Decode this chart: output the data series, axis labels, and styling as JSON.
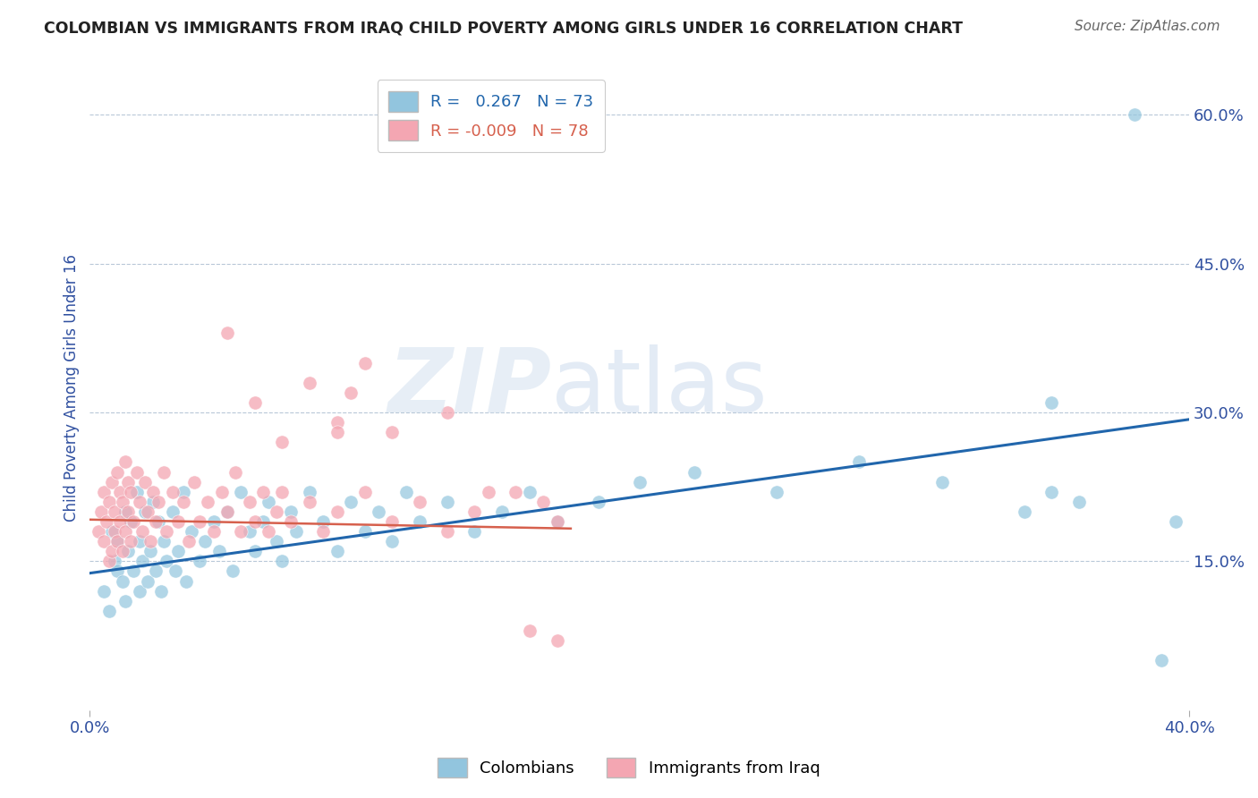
{
  "title": "COLOMBIAN VS IMMIGRANTS FROM IRAQ CHILD POVERTY AMONG GIRLS UNDER 16 CORRELATION CHART",
  "source": "Source: ZipAtlas.com",
  "ylabel_label": "Child Poverty Among Girls Under 16",
  "y_ticks": [
    0.15,
    0.3,
    0.45,
    0.6
  ],
  "y_tick_labels": [
    "15.0%",
    "30.0%",
    "45.0%",
    "60.0%"
  ],
  "xlim": [
    0.0,
    0.4
  ],
  "ylim": [
    0.0,
    0.65
  ],
  "colombians_R": 0.267,
  "colombians_N": 73,
  "iraq_R": -0.009,
  "iraq_N": 78,
  "blue_color": "#92c5de",
  "pink_color": "#f4a6b2",
  "blue_line_color": "#2166ac",
  "pink_line_color": "#d6604d",
  "legend_label_1": "Colombians",
  "legend_label_2": "Immigrants from Iraq",
  "blue_trend_x": [
    0.0,
    0.4
  ],
  "blue_trend_y": [
    0.138,
    0.293
  ],
  "pink_trend_x": [
    0.0,
    0.175
  ],
  "pink_trend_y": [
    0.192,
    0.183
  ],
  "blue_x": [
    0.005,
    0.007,
    0.008,
    0.009,
    0.01,
    0.01,
    0.012,
    0.013,
    0.013,
    0.014,
    0.015,
    0.016,
    0.017,
    0.018,
    0.018,
    0.019,
    0.02,
    0.021,
    0.022,
    0.023,
    0.024,
    0.025,
    0.026,
    0.027,
    0.028,
    0.03,
    0.031,
    0.032,
    0.034,
    0.035,
    0.037,
    0.04,
    0.042,
    0.045,
    0.047,
    0.05,
    0.052,
    0.055,
    0.058,
    0.06,
    0.063,
    0.065,
    0.068,
    0.07,
    0.073,
    0.075,
    0.08,
    0.085,
    0.09,
    0.095,
    0.1,
    0.105,
    0.11,
    0.115,
    0.12,
    0.13,
    0.14,
    0.15,
    0.16,
    0.17,
    0.185,
    0.2,
    0.22,
    0.25,
    0.28,
    0.31,
    0.34,
    0.35,
    0.36,
    0.38,
    0.39,
    0.395,
    0.35
  ],
  "blue_y": [
    0.12,
    0.1,
    0.18,
    0.15,
    0.14,
    0.17,
    0.13,
    0.2,
    0.11,
    0.16,
    0.19,
    0.14,
    0.22,
    0.12,
    0.17,
    0.15,
    0.2,
    0.13,
    0.16,
    0.21,
    0.14,
    0.19,
    0.12,
    0.17,
    0.15,
    0.2,
    0.14,
    0.16,
    0.22,
    0.13,
    0.18,
    0.15,
    0.17,
    0.19,
    0.16,
    0.2,
    0.14,
    0.22,
    0.18,
    0.16,
    0.19,
    0.21,
    0.17,
    0.15,
    0.2,
    0.18,
    0.22,
    0.19,
    0.16,
    0.21,
    0.18,
    0.2,
    0.17,
    0.22,
    0.19,
    0.21,
    0.18,
    0.2,
    0.22,
    0.19,
    0.21,
    0.23,
    0.24,
    0.22,
    0.25,
    0.23,
    0.2,
    0.22,
    0.21,
    0.6,
    0.05,
    0.19,
    0.31
  ],
  "pink_x": [
    0.003,
    0.004,
    0.005,
    0.005,
    0.006,
    0.007,
    0.007,
    0.008,
    0.008,
    0.009,
    0.009,
    0.01,
    0.01,
    0.011,
    0.011,
    0.012,
    0.012,
    0.013,
    0.013,
    0.014,
    0.014,
    0.015,
    0.015,
    0.016,
    0.017,
    0.018,
    0.019,
    0.02,
    0.021,
    0.022,
    0.023,
    0.024,
    0.025,
    0.027,
    0.028,
    0.03,
    0.032,
    0.034,
    0.036,
    0.038,
    0.04,
    0.043,
    0.045,
    0.048,
    0.05,
    0.053,
    0.055,
    0.058,
    0.06,
    0.063,
    0.065,
    0.068,
    0.07,
    0.073,
    0.08,
    0.085,
    0.09,
    0.1,
    0.11,
    0.12,
    0.13,
    0.14,
    0.155,
    0.165,
    0.17,
    0.05,
    0.06,
    0.07,
    0.08,
    0.09,
    0.1,
    0.11,
    0.13,
    0.145,
    0.16,
    0.17,
    0.09,
    0.095
  ],
  "pink_y": [
    0.18,
    0.2,
    0.17,
    0.22,
    0.19,
    0.15,
    0.21,
    0.16,
    0.23,
    0.18,
    0.2,
    0.17,
    0.24,
    0.19,
    0.22,
    0.16,
    0.21,
    0.18,
    0.25,
    0.2,
    0.23,
    0.17,
    0.22,
    0.19,
    0.24,
    0.21,
    0.18,
    0.23,
    0.2,
    0.17,
    0.22,
    0.19,
    0.21,
    0.24,
    0.18,
    0.22,
    0.19,
    0.21,
    0.17,
    0.23,
    0.19,
    0.21,
    0.18,
    0.22,
    0.2,
    0.24,
    0.18,
    0.21,
    0.19,
    0.22,
    0.18,
    0.2,
    0.22,
    0.19,
    0.21,
    0.18,
    0.2,
    0.22,
    0.19,
    0.21,
    0.18,
    0.2,
    0.22,
    0.21,
    0.19,
    0.38,
    0.31,
    0.27,
    0.33,
    0.29,
    0.35,
    0.28,
    0.3,
    0.22,
    0.08,
    0.07,
    0.28,
    0.32
  ]
}
